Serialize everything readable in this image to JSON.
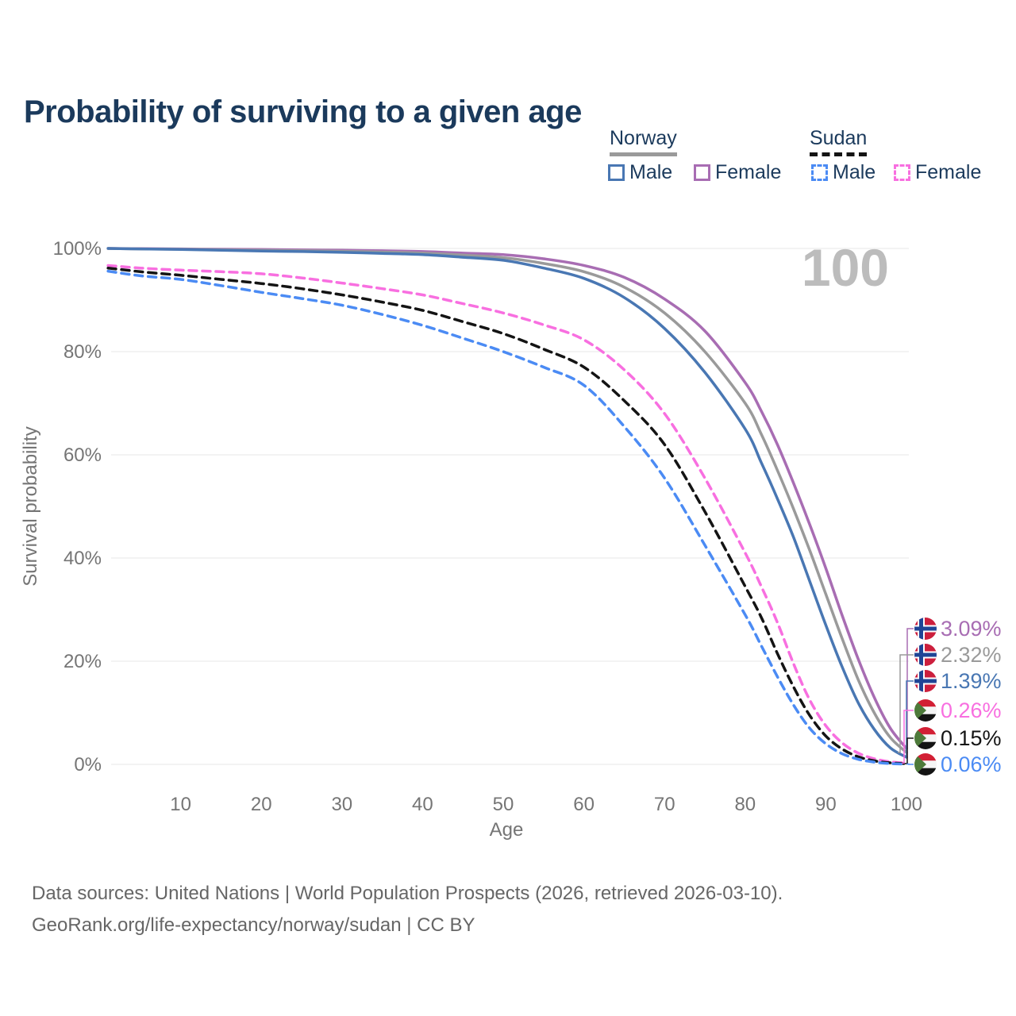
{
  "header": {
    "title": "Probability of surviving to a given age"
  },
  "legend": {
    "norway": {
      "label": "Norway",
      "male_label": "Male",
      "female_label": "Female"
    },
    "sudan": {
      "label": "Sudan",
      "male_label": "Male",
      "female_label": "Female"
    }
  },
  "footer": {
    "line1": "Data sources: United Nations | World Population Prospects (2026, retrieved 2026-03-10).",
    "line2": "GeoRank.org/life-expectancy/norway/sudan | CC BY"
  },
  "chart_data": {
    "type": "line",
    "title": "Probability of surviving to a given age",
    "xlabel": "Age",
    "ylabel": "Survival probability",
    "xlim": [
      0,
      100
    ],
    "ylim": [
      0,
      100
    ],
    "grid": "horizontal",
    "watermark": "100",
    "yticks": [
      {
        "label": "100%",
        "v": 100
      },
      {
        "label": "80%",
        "v": 80
      },
      {
        "label": "60%",
        "v": 60
      },
      {
        "label": "40%",
        "v": 40
      },
      {
        "label": "20%",
        "v": 20
      },
      {
        "label": "0%",
        "v": 0
      }
    ],
    "xticks": [
      {
        "label": "10",
        "v": 10
      },
      {
        "label": "20",
        "v": 20
      },
      {
        "label": "30",
        "v": 30
      },
      {
        "label": "40",
        "v": 40
      },
      {
        "label": "50",
        "v": 50
      },
      {
        "label": "60",
        "v": 60
      },
      {
        "label": "70",
        "v": 70
      },
      {
        "label": "80",
        "v": 80
      },
      {
        "label": "90",
        "v": 90
      },
      {
        "label": "100",
        "v": 100
      }
    ],
    "ages": [
      1,
      5,
      10,
      15,
      20,
      25,
      30,
      35,
      40,
      45,
      50,
      55,
      60,
      65,
      70,
      75,
      80,
      82,
      84,
      86,
      88,
      90,
      92,
      94,
      96,
      98,
      100
    ],
    "series": [
      {
        "name": "Norway Female",
        "id": "norway-female",
        "country": "norway",
        "sex": "female",
        "color": "#a86db3",
        "dash": "solid",
        "end_label": "3.09%",
        "values": [
          100,
          99.95,
          99.9,
          99.85,
          99.8,
          99.7,
          99.65,
          99.55,
          99.4,
          99.1,
          98.8,
          98.0,
          96.7,
          94.4,
          90.2,
          84.0,
          74.0,
          68.5,
          62.0,
          54.5,
          46.5,
          38.0,
          29.0,
          20.5,
          13.0,
          7.0,
          3.09
        ]
      },
      {
        "name": "Norway Both Sexes",
        "id": "norway-both",
        "country": "norway",
        "sex": "both",
        "color": "#9a9a9a",
        "dash": "solid",
        "end_label": "2.32%",
        "values": [
          100,
          99.9,
          99.85,
          99.75,
          99.65,
          99.55,
          99.45,
          99.3,
          99.1,
          98.7,
          98.2,
          97.1,
          95.5,
          92.5,
          87.5,
          80.0,
          70.0,
          64.0,
          57.0,
          49.5,
          41.5,
          33.0,
          24.5,
          16.5,
          10.0,
          5.2,
          2.32
        ]
      },
      {
        "name": "Norway Male",
        "id": "norway-male",
        "country": "norway",
        "sex": "male",
        "color": "#4977b3",
        "dash": "solid",
        "end_label": "1.39%",
        "values": [
          100,
          99.9,
          99.8,
          99.65,
          99.5,
          99.4,
          99.25,
          99.05,
          98.8,
          98.3,
          97.7,
          96.2,
          94.2,
          90.5,
          84.5,
          76.0,
          65.0,
          58.5,
          51.5,
          44.0,
          35.5,
          27.0,
          19.0,
          12.0,
          6.8,
          3.2,
          1.39
        ]
      },
      {
        "name": "Sudan Female",
        "id": "sudan-female",
        "country": "sudan",
        "sex": "female",
        "color": "#f86fe0",
        "dash": "dashed",
        "end_label": "0.26%",
        "values": [
          96.7,
          96.2,
          95.8,
          95.5,
          95.1,
          94.3,
          93.3,
          92.2,
          91.0,
          89.3,
          87.5,
          85.2,
          82.3,
          76.5,
          68.0,
          55.5,
          41.0,
          34.5,
          27.5,
          19.5,
          12.5,
          7.5,
          4.2,
          2.2,
          1.1,
          0.5,
          0.26
        ]
      },
      {
        "name": "Sudan Both Sexes",
        "id": "sudan-both",
        "country": "sudan",
        "sex": "both",
        "color": "#141414",
        "dash": "dashed",
        "end_label": "0.15%",
        "values": [
          96.2,
          95.5,
          94.8,
          94.0,
          93.2,
          92.2,
          91.0,
          89.6,
          88.0,
          85.8,
          83.5,
          80.5,
          77.0,
          70.5,
          62.0,
          49.0,
          34.5,
          28.5,
          21.5,
          15.0,
          9.5,
          5.5,
          3.0,
          1.5,
          0.7,
          0.3,
          0.15
        ]
      },
      {
        "name": "Sudan Male",
        "id": "sudan-male",
        "country": "sudan",
        "sex": "male",
        "color": "#4b8bf4",
        "dash": "dashed",
        "end_label": "0.06%",
        "values": [
          95.6,
          94.7,
          94.0,
          92.8,
          91.5,
          90.3,
          89.0,
          87.2,
          85.1,
          82.6,
          80.0,
          77.0,
          73.5,
          65.5,
          55.5,
          42.5,
          29.0,
          23.0,
          17.0,
          11.5,
          7.0,
          4.0,
          2.1,
          1.0,
          0.45,
          0.15,
          0.06
        ]
      }
    ],
    "flag_colors": {
      "norway": {
        "red": "#cc1f3d",
        "blue": "#1f4596",
        "white": "#ffffff"
      },
      "sudan": {
        "red": "#d21f34",
        "white": "#f5f5f5",
        "black": "#141414",
        "green": "#4d7a3a"
      }
    }
  }
}
